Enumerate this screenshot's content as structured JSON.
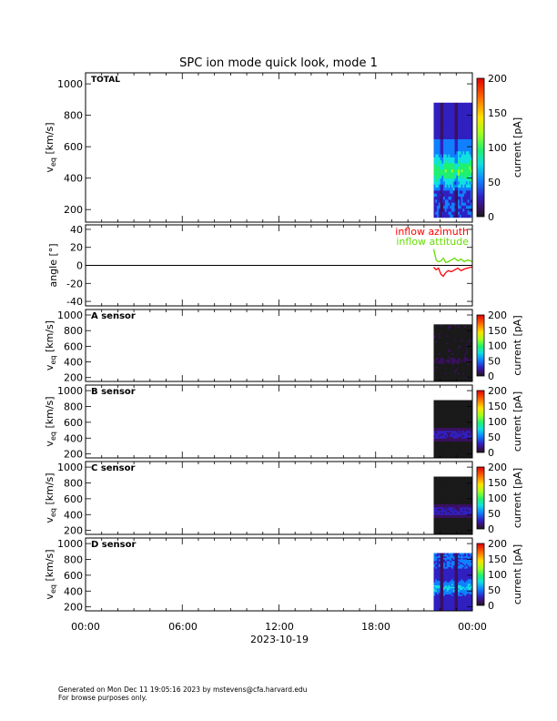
{
  "title": "SPC ion mode quick look, mode 1",
  "footer": {
    "line1": "Generated on Mon Dec 11 19:05:16 2023 by mstevens@cfa.harvard.edu",
    "line2": "For browse purposes only."
  },
  "x_axis": {
    "date_label": "2023-10-19",
    "ticks": [
      "00:00",
      "06:00",
      "12:00",
      "18:00",
      "00:00"
    ],
    "range_hours": [
      0,
      24
    ]
  },
  "colorscale": {
    "colors": [
      "#1a1a1a",
      "#3a1060",
      "#3020c0",
      "#1080ff",
      "#10e0e0",
      "#20f070",
      "#a0ff20",
      "#ffe000",
      "#ff7000",
      "#e00000"
    ]
  },
  "chart_data": [
    {
      "type": "heatmap",
      "panel": "total",
      "label": "TOTAL",
      "ylabel": "v",
      "ylabel_sub": "eq",
      "ylabel_unit": " [km/s]",
      "ylim": [
        120,
        1070
      ],
      "yticks": [
        200,
        400,
        600,
        800,
        1000
      ],
      "data_x_range_hours": [
        21.6,
        24
      ],
      "data_v_range": [
        150,
        880
      ],
      "colorbar": {
        "label": "current [pA]",
        "range": [
          0,
          200
        ],
        "ticks": [
          0,
          50,
          100,
          150,
          200
        ]
      }
    },
    {
      "type": "line",
      "panel": "angle",
      "ylabel": "angle [°]",
      "ylim": [
        -45,
        45
      ],
      "yticks": [
        -40,
        -20,
        0,
        20,
        40
      ],
      "series": [
        {
          "name": "inflow azimuth",
          "color": "#ff0000",
          "x": [
            21.6,
            21.75,
            21.9,
            22.05,
            22.2,
            22.35,
            22.5,
            22.7,
            22.9,
            23.1,
            23.3,
            23.5,
            23.7,
            23.9,
            24.0
          ],
          "y": [
            -2,
            -5,
            -3,
            -10,
            -12,
            -8,
            -6,
            -7,
            -5,
            -3,
            -6,
            -4,
            -3,
            -2,
            -2
          ]
        },
        {
          "name": "inflow attitude",
          "color": "#66dd00",
          "x": [
            21.6,
            21.75,
            21.9,
            22.05,
            22.2,
            22.35,
            22.5,
            22.7,
            22.9,
            23.1,
            23.3,
            23.5,
            23.7,
            23.9,
            24.0
          ],
          "y": [
            18,
            6,
            4,
            5,
            8,
            3,
            4,
            6,
            8,
            5,
            7,
            4,
            6,
            5,
            4
          ]
        }
      ]
    },
    {
      "type": "heatmap",
      "panel": "a",
      "label": "A sensor",
      "ylabel": "v",
      "ylabel_sub": "eq",
      "ylabel_unit": " [km/s]",
      "ylim": [
        150,
        1070
      ],
      "yticks": [
        200,
        400,
        600,
        800,
        1000
      ],
      "data_x_range_hours": [
        21.6,
        24
      ],
      "data_v_range": [
        150,
        880
      ],
      "colorbar": {
        "label": "current [pA]",
        "range": [
          0,
          200
        ],
        "ticks": [
          0,
          50,
          100,
          150,
          200
        ]
      }
    },
    {
      "type": "heatmap",
      "panel": "b",
      "label": "B sensor",
      "ylabel": "v",
      "ylabel_sub": "eq",
      "ylabel_unit": " [km/s]",
      "ylim": [
        150,
        1070
      ],
      "yticks": [
        200,
        400,
        600,
        800,
        1000
      ],
      "data_x_range_hours": [
        21.6,
        24
      ],
      "data_v_range": [
        150,
        880
      ],
      "colorbar": {
        "label": "current [pA]",
        "range": [
          0,
          200
        ],
        "ticks": [
          0,
          50,
          100,
          150,
          200
        ]
      }
    },
    {
      "type": "heatmap",
      "panel": "c",
      "label": "C sensor",
      "ylabel": "v",
      "ylabel_sub": "eq",
      "ylabel_unit": " [km/s]",
      "ylim": [
        150,
        1070
      ],
      "yticks": [
        200,
        400,
        600,
        800,
        1000
      ],
      "data_x_range_hours": [
        21.6,
        24
      ],
      "data_v_range": [
        150,
        880
      ],
      "colorbar": {
        "label": "current [pA]",
        "range": [
          0,
          200
        ],
        "ticks": [
          0,
          50,
          100,
          150,
          200
        ]
      }
    },
    {
      "type": "heatmap",
      "panel": "d",
      "label": "D sensor",
      "ylabel": "v",
      "ylabel_sub": "eq",
      "ylabel_unit": " [km/s]",
      "ylim": [
        150,
        1070
      ],
      "yticks": [
        200,
        400,
        600,
        800,
        1000
      ],
      "data_x_range_hours": [
        21.6,
        24
      ],
      "data_v_range": [
        150,
        880
      ],
      "colorbar": {
        "label": "current [pA]",
        "range": [
          0,
          200
        ],
        "ticks": [
          0,
          50,
          100,
          150,
          200
        ]
      }
    }
  ]
}
